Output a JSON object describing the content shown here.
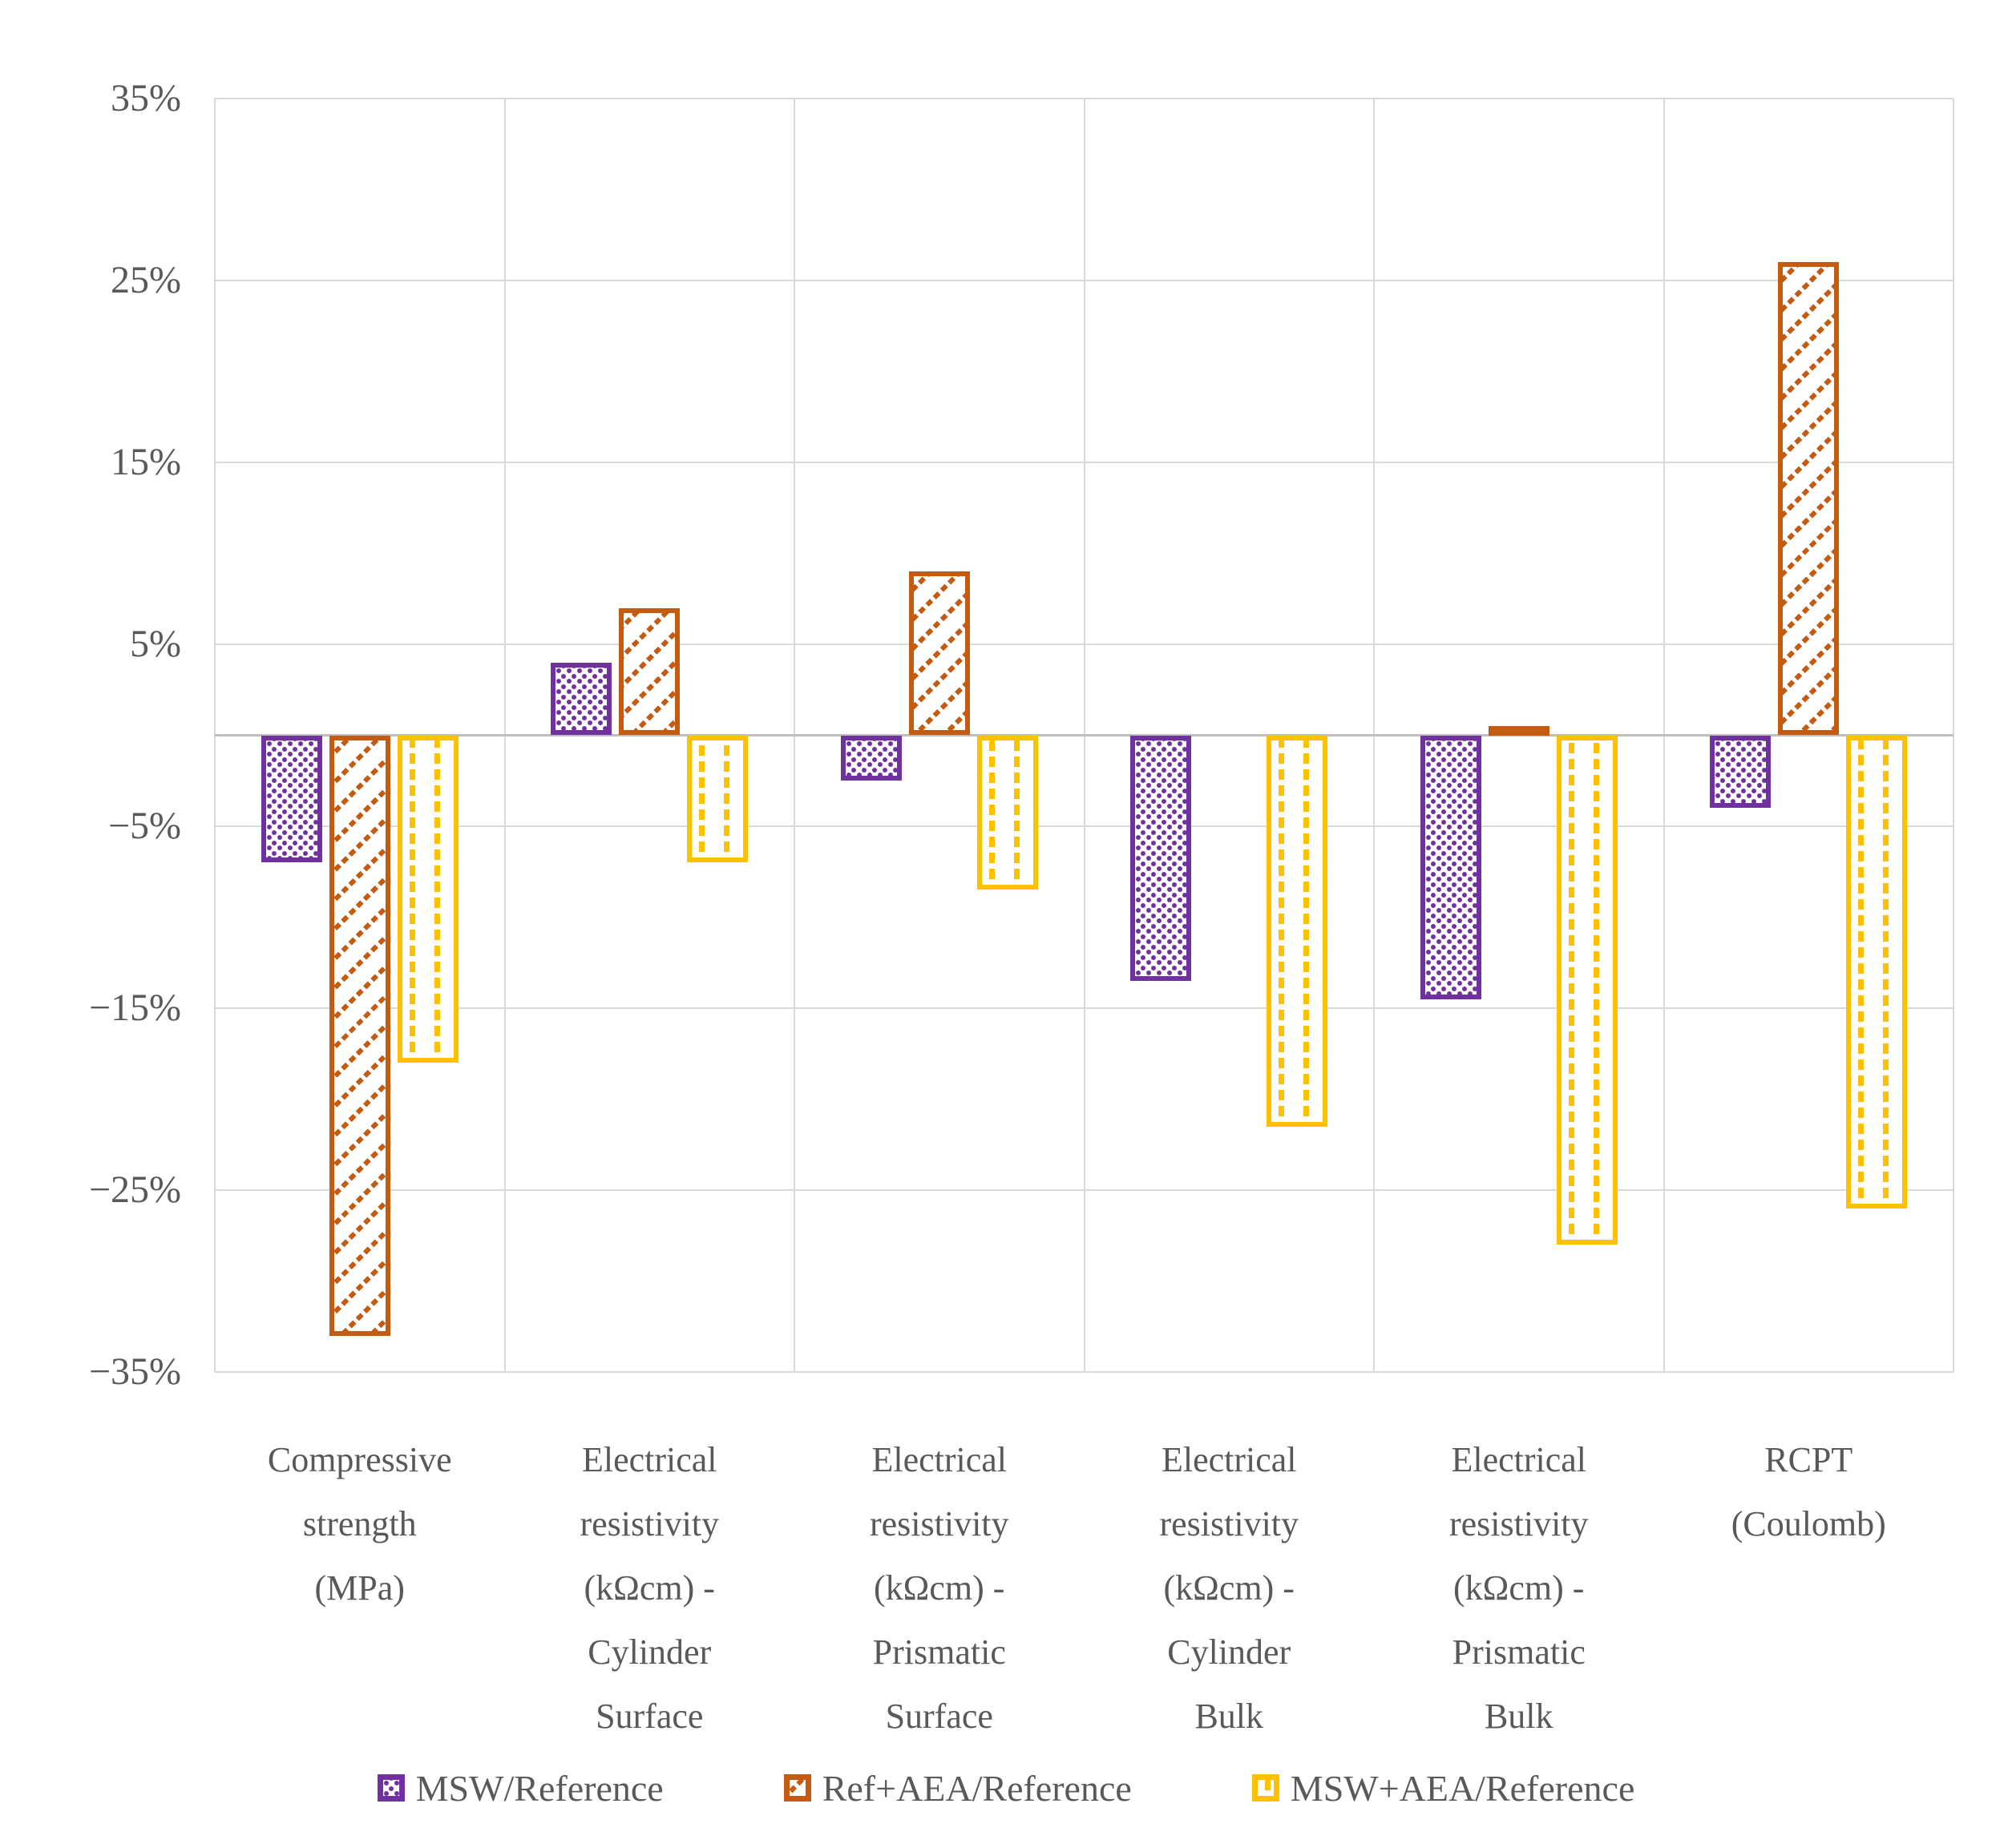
{
  "chart_data": {
    "type": "bar",
    "title": "",
    "unit": "percent relative change",
    "categories": [
      "Compressive\nstrength\n(MPa)",
      "Electrical\nresistivity\n(kΩcm) -\nCylinder\nSurface",
      "Electrical\nresistivity\n(kΩcm) -\nPrismatic\nSurface",
      "Electrical\nresistivity\n(kΩcm) -\nCylinder\nBulk",
      "Electrical\nresistivity\n(kΩcm) -\nPrismatic\nBulk",
      "RCPT\n(Coulomb)"
    ],
    "series": [
      {
        "name": "MSW/Reference",
        "color": "#7030A0",
        "pattern": "dots",
        "values": [
          -7,
          4,
          -2.5,
          -13.5,
          -14.5,
          -4
        ]
      },
      {
        "name": "Ref+AEA/Reference",
        "color": "#C55A11",
        "pattern": "diagonal-dashes",
        "values": [
          -33,
          7,
          9,
          0,
          0.5,
          26
        ]
      },
      {
        "name": "MSW+AEA/Reference",
        "color": "#FFC000",
        "pattern": "vertical-dashes",
        "values": [
          -18,
          -7,
          -8.5,
          -21.5,
          -28,
          -26
        ]
      }
    ],
    "ylim": [
      -35,
      35
    ],
    "ytick_step": 10,
    "yticks": [
      "35%",
      "25%",
      "15%",
      "5%",
      "−5%",
      "−15%",
      "−25%",
      "−35%"
    ],
    "grid": true,
    "legend_position": "bottom",
    "colors": {
      "grid": "#D9D9D9",
      "zero_line": "#BFBFBF",
      "text": "#595959",
      "background": "#FFFFFF"
    }
  }
}
